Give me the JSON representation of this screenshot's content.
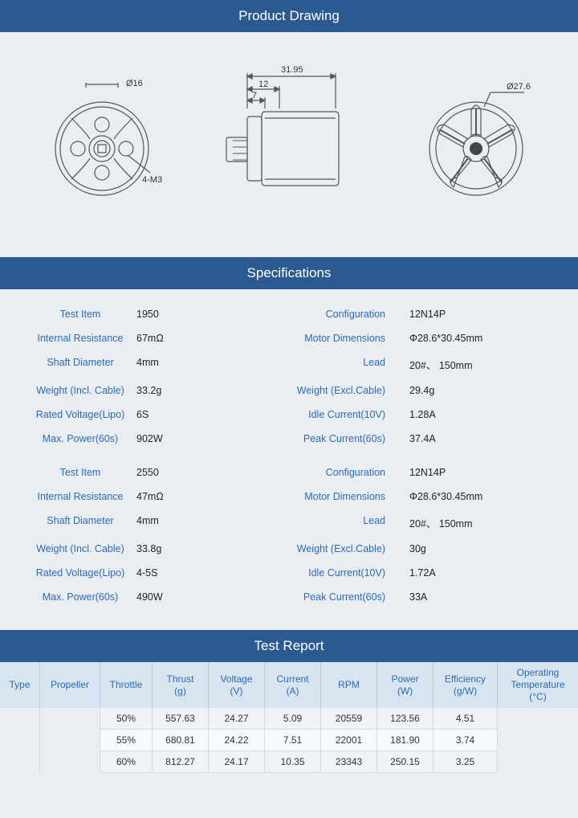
{
  "headers": {
    "drawing": "Product Drawing",
    "specs": "Specifications",
    "test": "Test Report"
  },
  "drawing": {
    "view1": {
      "d16": "Ø16",
      "m3": "4-M3"
    },
    "view2": {
      "w": "31.95",
      "w2": "12",
      "w3": "7"
    },
    "view3": {
      "d": "Ø27.6"
    }
  },
  "specs": [
    {
      "rows": [
        {
          "l1": "Test Item",
          "v1": "1950",
          "l2": "Configuration",
          "v2": "12N14P"
        },
        {
          "l1": "Internal Resistance",
          "v1": "67mΩ",
          "l2": "Motor Dimensions",
          "v2": "Φ28.6*30.45mm"
        },
        {
          "l1": "Shaft Diameter",
          "v1": "4mm",
          "l2": "Lead",
          "v2": "20#、 150mm"
        },
        {
          "l1": "Weight (Incl. Cable)",
          "v1": "33.2g",
          "l2": "Weight (Excl.Cable)",
          "v2": "29.4g"
        },
        {
          "l1": "Rated Voltage(Lipo)",
          "v1": "6S",
          "l2": "Idle Current(10V)",
          "v2": "1.28A"
        },
        {
          "l1": "Max. Power(60s)",
          "v1": "902W",
          "l2": "Peak Current(60s)",
          "v2": "37.4A"
        }
      ]
    },
    {
      "rows": [
        {
          "l1": "Test Item",
          "v1": "2550",
          "l2": "Configuration",
          "v2": "12N14P"
        },
        {
          "l1": "Internal Resistance",
          "v1": "47mΩ",
          "l2": "Motor Dimensions",
          "v2": "Φ28.6*30.45mm"
        },
        {
          "l1": "Shaft Diameter",
          "v1": "4mm",
          "l2": "Lead",
          "v2": "20#、 150mm"
        },
        {
          "l1": "Weight (Incl. Cable)",
          "v1": "33.8g",
          "l2": "Weight (Excl.Cable)",
          "v2": "30g"
        },
        {
          "l1": "Rated Voltage(Lipo)",
          "v1": "4-5S",
          "l2": "Idle Current(10V)",
          "v2": "1.72A"
        },
        {
          "l1": "Max. Power(60s)",
          "v1": "490W",
          "l2": "Peak Current(60s)",
          "v2": "33A"
        }
      ]
    }
  ],
  "test": {
    "columns": [
      "Type",
      "Propeller",
      "Throttle",
      "Thrust\n(g)",
      "Voltage\n(V)",
      "Current\n(A)",
      "RPM",
      "Power\n(W)",
      "Efficiency\n(g/W)",
      "Operating\nTemperature\n(°C)"
    ],
    "rows": [
      [
        "",
        "",
        "50%",
        "557.63",
        "24.27",
        "5.09",
        "20559",
        "123.56",
        "4.51",
        ""
      ],
      [
        "",
        "",
        "55%",
        "680.81",
        "24.22",
        "7.51",
        "22001",
        "181.90",
        "3.74",
        ""
      ],
      [
        "",
        "",
        "60%",
        "812.27",
        "24.17",
        "10.35",
        "23343",
        "250.15",
        "3.25",
        ""
      ]
    ]
  },
  "style": {
    "header_bg": "#2a5a8f",
    "label_color": "#2a6bb5",
    "row_even_bg": "#eef3f8",
    "row_odd_bg": "#f7fafc"
  }
}
